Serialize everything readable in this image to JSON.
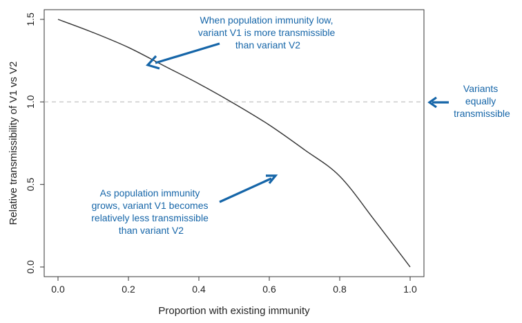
{
  "chart_data": {
    "type": "line",
    "title": "",
    "xlabel": "Proportion with existing immunity",
    "ylabel": "Relative transmissibility of V1 vs V2",
    "xlim": [
      0,
      1
    ],
    "ylim": [
      0,
      1.5
    ],
    "grid": false,
    "x_ticks": [
      "0.0",
      "0.2",
      "0.4",
      "0.6",
      "0.8",
      "1.0"
    ],
    "y_ticks": [
      "0.0",
      "0.5",
      "1.0",
      "1.5"
    ],
    "x": [
      0.0,
      0.1,
      0.2,
      0.3,
      0.4,
      0.5,
      0.6,
      0.7,
      0.8,
      0.9,
      1.0
    ],
    "series": [
      {
        "values": [
          1.5,
          1.42,
          1.33,
          1.22,
          1.11,
          0.99,
          0.86,
          0.71,
          0.55,
          0.28,
          0.0
        ]
      }
    ],
    "reference_line": {
      "y": 1.0,
      "style": "dashed"
    },
    "annotations": [
      {
        "id": "low",
        "lines": [
          "When population immunity low,",
          "variant V1 is more transmissible",
          "than variant V2"
        ]
      },
      {
        "id": "equal",
        "lines": [
          "Variants",
          "equally",
          "transmissible"
        ]
      },
      {
        "id": "grows",
        "lines": [
          "As population immunity",
          "grows, variant V1 becomes",
          "relatively less transmissible",
          "than variant V2"
        ]
      }
    ],
    "colors": {
      "curve": "#333333",
      "annotation": "#1565a8",
      "reference": "#bbbbbb",
      "axis": "#333333"
    }
  }
}
